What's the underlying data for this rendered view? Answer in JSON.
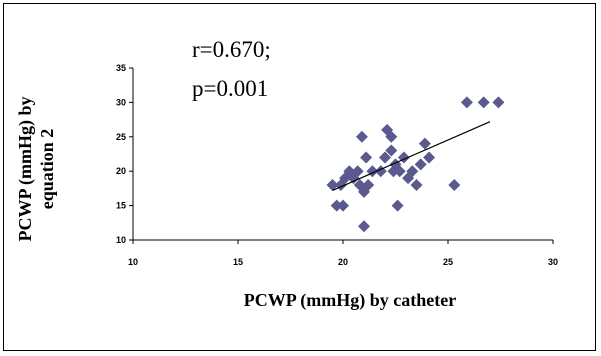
{
  "chart_data": {
    "type": "scatter",
    "title": "",
    "xlabel": "PCWP (mmHg)  by catheter",
    "ylabel_lines": [
      "PCWP (mmHg)  by",
      "equation 2"
    ],
    "annotation_lines": [
      "r=0.670;",
      "p=0.001"
    ],
    "xlim": [
      10,
      30
    ],
    "ylim": [
      10,
      35
    ],
    "x_ticks": [
      10,
      15,
      20,
      25,
      30
    ],
    "y_ticks": [
      10,
      15,
      20,
      25,
      30,
      35
    ],
    "grid": false,
    "legend": "none",
    "marker_color": "#5a5a8e",
    "trendline": {
      "x": [
        19.5,
        27.0
      ],
      "y": [
        17.2,
        27.2
      ],
      "color": "#000000"
    },
    "points": [
      {
        "x": 19.5,
        "y": 18
      },
      {
        "x": 19.7,
        "y": 15
      },
      {
        "x": 20.0,
        "y": 15
      },
      {
        "x": 19.9,
        "y": 18
      },
      {
        "x": 20.1,
        "y": 19
      },
      {
        "x": 20.3,
        "y": 20
      },
      {
        "x": 20.5,
        "y": 19
      },
      {
        "x": 20.7,
        "y": 20
      },
      {
        "x": 20.8,
        "y": 18
      },
      {
        "x": 20.9,
        "y": 25
      },
      {
        "x": 21.0,
        "y": 17
      },
      {
        "x": 21.0,
        "y": 12
      },
      {
        "x": 21.1,
        "y": 22
      },
      {
        "x": 21.2,
        "y": 18
      },
      {
        "x": 21.4,
        "y": 20
      },
      {
        "x": 21.8,
        "y": 20
      },
      {
        "x": 22.0,
        "y": 22
      },
      {
        "x": 22.1,
        "y": 26
      },
      {
        "x": 22.3,
        "y": 25
      },
      {
        "x": 22.3,
        "y": 23
      },
      {
        "x": 22.4,
        "y": 20
      },
      {
        "x": 22.5,
        "y": 21
      },
      {
        "x": 22.6,
        "y": 15
      },
      {
        "x": 22.7,
        "y": 20
      },
      {
        "x": 22.9,
        "y": 22
      },
      {
        "x": 23.1,
        "y": 19
      },
      {
        "x": 23.3,
        "y": 20
      },
      {
        "x": 23.5,
        "y": 18
      },
      {
        "x": 23.7,
        "y": 21
      },
      {
        "x": 23.9,
        "y": 24
      },
      {
        "x": 24.1,
        "y": 22
      },
      {
        "x": 25.3,
        "y": 18
      },
      {
        "x": 25.9,
        "y": 30
      },
      {
        "x": 26.7,
        "y": 30
      },
      {
        "x": 27.4,
        "y": 30
      }
    ]
  }
}
